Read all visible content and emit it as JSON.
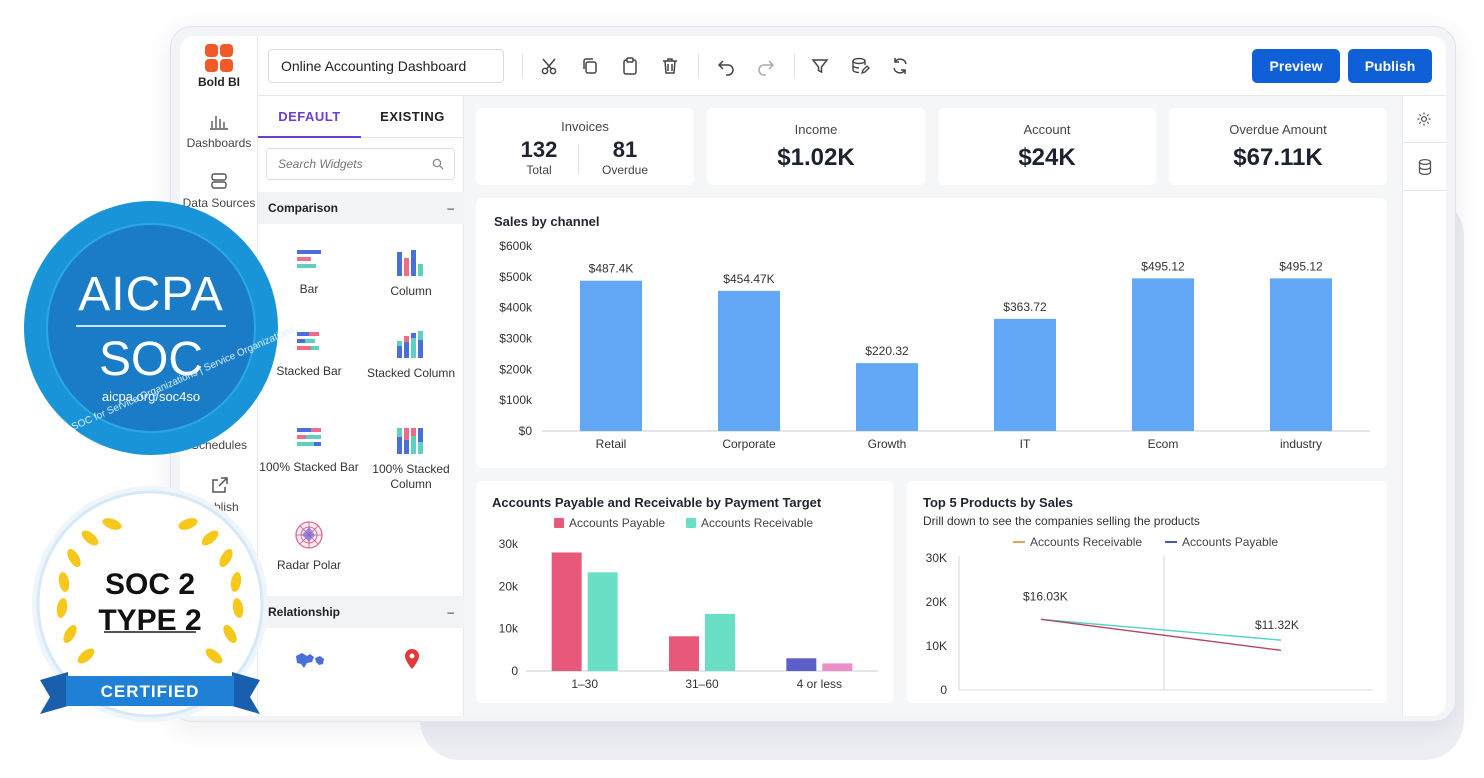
{
  "app": {
    "brand": "Bold BI",
    "dashboard_title": "Online Accounting Dashboard",
    "nav": [
      {
        "label": "Dashboards",
        "icon": "bar-chart-icon"
      },
      {
        "label": "Data Sources",
        "icon": "database-icon"
      },
      {
        "label": "Schedules",
        "icon": "calendar-icon"
      },
      {
        "label": "Publish",
        "icon": "external-link-icon"
      }
    ],
    "toolbar": {
      "icons": [
        "scissors-icon",
        "copy-icon",
        "clipboard-icon",
        "trash-icon",
        "undo-icon",
        "redo-icon",
        "filter-icon",
        "data-edit-icon",
        "refresh-icon"
      ],
      "preview_label": "Preview",
      "publish_label": "Publish"
    }
  },
  "widget_panel": {
    "tabs": [
      {
        "label": "DEFAULT",
        "active": true
      },
      {
        "label": "EXISTING",
        "active": false
      }
    ],
    "search_placeholder": "Search Widgets",
    "sections": [
      {
        "title": "Comparison",
        "toggle": "–",
        "items": [
          "Bar",
          "Column",
          "Stacked Bar",
          "Stacked Column",
          "100% Stacked Bar",
          "100% Stacked Column",
          "Radar Polar"
        ]
      },
      {
        "title": "Relationship",
        "toggle": "–",
        "items": []
      }
    ]
  },
  "kpis": {
    "invoices": {
      "label": "Invoices",
      "total_value": "132",
      "total_label": "Total",
      "overdue_value": "81",
      "overdue_label": "Overdue"
    },
    "income": {
      "label": "Income",
      "value": "$1.02K"
    },
    "account": {
      "label": "Account",
      "value": "$24K"
    },
    "overdue_amount": {
      "label": "Overdue Amount",
      "value": "$67.11K"
    }
  },
  "badges": {
    "aicpa": {
      "line1": "AICPA",
      "line2": "SOC",
      "url": "aicpa.org/soc4so",
      "ring_text": "SOC for Service Organizations | Service Organizations"
    },
    "soc2": {
      "line1": "SOC 2",
      "line2": "TYPE 2",
      "ribbon": "CERTIFIED"
    }
  },
  "chart_data": [
    {
      "type": "bar",
      "title": "Sales by channel",
      "categories": [
        "Retail",
        "Corporate",
        "Growth",
        "IT",
        "Ecom",
        "industry"
      ],
      "values": [
        487400,
        454470,
        220320,
        363720,
        495120,
        495120
      ],
      "data_labels": [
        "$487.4K",
        "$454.47K",
        "$220.32",
        "$363.72",
        "$495.12",
        "$495.12"
      ],
      "y_ticks": [
        "$0",
        "$100k",
        "$200k",
        "$300k",
        "$400k",
        "$500k",
        "$600k"
      ],
      "ylim": [
        0,
        600000
      ],
      "color": "#62a8f7",
      "grid": false
    },
    {
      "type": "bar",
      "title": "Accounts Payable and Receivable by Payment Target",
      "categories": [
        "1–30",
        "31–60",
        "4 or less"
      ],
      "series": [
        {
          "name": "Accounts Payable",
          "values": [
            28000,
            8200,
            3000
          ],
          "colors": [
            "#e8587a",
            "#e8587a",
            "#5b5fc7"
          ]
        },
        {
          "name": "Accounts Receivable",
          "values": [
            23300,
            13500,
            1800
          ],
          "colors": [
            "#69dfc6",
            "#69dfc6",
            "#ec8fc9"
          ]
        }
      ],
      "y_ticks": [
        "0",
        "10k",
        "20k",
        "30k"
      ],
      "ylim": [
        0,
        30000
      ],
      "legend": "top-center"
    },
    {
      "type": "line",
      "title": "Top 5 Products by Sales",
      "subtitle": "Drill down to see the companies selling the products",
      "x": [
        0,
        1
      ],
      "series": [
        {
          "name": "Accounts Receivable",
          "values": [
            16030,
            11320
          ],
          "color": "#52d2c8",
          "legend_color": "#e3a35a"
        },
        {
          "name": "Accounts Payable",
          "values": [
            16030,
            9000
          ],
          "color": "#b8455e",
          "legend_color": "#4b57b8"
        }
      ],
      "data_labels": [
        "$16.03K",
        "$11.32K"
      ],
      "y_ticks": [
        "0",
        "10K",
        "20K",
        "30K"
      ],
      "ylim": [
        0,
        32000
      ],
      "legend": "top-center"
    }
  ]
}
